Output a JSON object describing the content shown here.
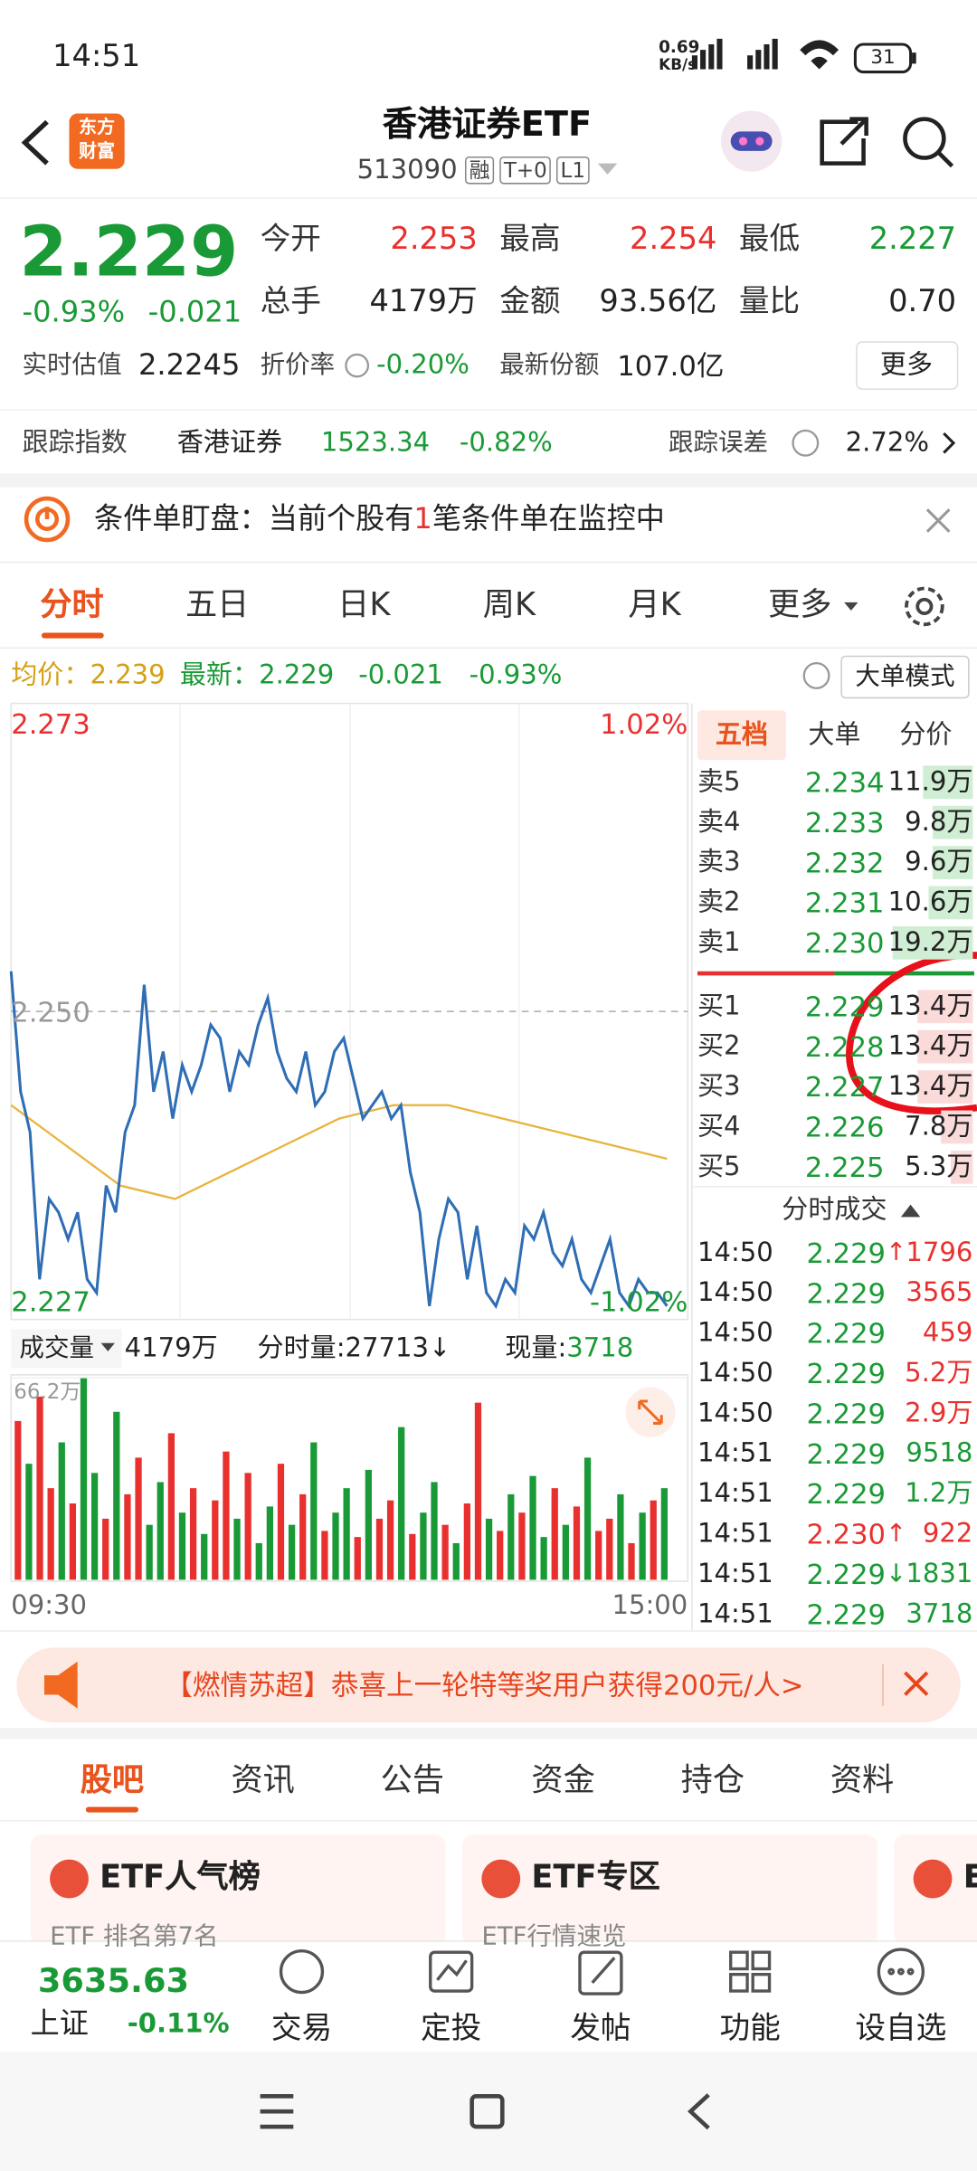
{
  "status_bar": {
    "time": "14:51",
    "speed": "0.69",
    "speed_unit": "KB/s",
    "battery": "31"
  },
  "header": {
    "logo": [
      "东方",
      "财富"
    ],
    "title": "香港证券ETF",
    "code": "513090",
    "tags": [
      "融",
      "T+0",
      "L1"
    ]
  },
  "quote": {
    "price": "2.229",
    "change_pct": "-0.93%",
    "change": "-0.021",
    "fields": [
      {
        "label": "今开",
        "value": "2.253",
        "tone": "up"
      },
      {
        "label": "最高",
        "value": "2.254",
        "tone": "up"
      },
      {
        "label": "最低",
        "value": "2.227",
        "tone": "down"
      },
      {
        "label": "总手",
        "value": "4179万",
        "tone": "flat"
      },
      {
        "label": "金额",
        "value": "93.56亿",
        "tone": "flat"
      },
      {
        "label": "量比",
        "value": "0.70",
        "tone": "flat"
      }
    ],
    "estimate_label": "实时估值",
    "estimate": "2.2245",
    "discount_label": "折价率",
    "discount": "-0.20%",
    "shares_label": "最新份额",
    "shares": "107.0亿",
    "more": "更多"
  },
  "tracking": {
    "label": "跟踪指数",
    "index": "香港证券",
    "index_value": "1523.34",
    "index_change": "-0.82%",
    "error_label": "跟踪误差",
    "error": "2.72%"
  },
  "alert": {
    "before": "条件单盯盘：当前个股有",
    "count": "1",
    "after": "笔条件单在监控中"
  },
  "tabs": [
    "分时",
    "五日",
    "日K",
    "周K",
    "月K",
    "更多"
  ],
  "info": {
    "avg_label": "均价：",
    "avg": "2.239",
    "last_label": "最新：",
    "last": "2.229",
    "change": "-0.021",
    "change_pct": "-0.93%",
    "mode": "大单模式"
  },
  "price_chart": {
    "ylim": [
      2.227,
      2.273
    ],
    "yticks": [
      2.227,
      {
        "value": 2.25,
        "label": "2.250"
      },
      2.273
    ],
    "pct_labels": [
      "1.02%",
      "-1.02%"
    ],
    "price_color": "#2f6db5",
    "average_color": "#e8b43c",
    "price": [
      2.253,
      2.244,
      2.241,
      2.23,
      2.236,
      2.235,
      2.233,
      2.235,
      2.23,
      2.229,
      2.237,
      2.235,
      2.241,
      2.243,
      2.252,
      2.244,
      2.247,
      2.242,
      2.246,
      2.244,
      2.246,
      2.249,
      2.248,
      2.244,
      2.247,
      2.246,
      2.249,
      2.251,
      2.247,
      2.245,
      2.244,
      2.247,
      2.243,
      2.244,
      2.247,
      2.248,
      2.245,
      2.242,
      2.243,
      2.244,
      2.242,
      2.243,
      2.238,
      2.235,
      2.228,
      2.233,
      2.236,
      2.235,
      2.23,
      2.234,
      2.229,
      2.228,
      2.23,
      2.229,
      2.234,
      2.233,
      2.235,
      2.232,
      2.231,
      2.233,
      2.23,
      2.229,
      2.231,
      2.233,
      2.229,
      2.228,
      2.23,
      2.229,
      2.229,
      2.228
    ],
    "average": [
      2.243,
      2.24,
      2.237,
      2.236,
      2.238,
      2.24,
      2.242,
      2.243,
      2.243,
      2.242,
      2.241,
      2.24,
      2.239
    ]
  },
  "volume_bar": {
    "label": "成交量",
    "total": "4179万",
    "minute_label": "分时量:",
    "minute": "27713",
    "arrow": "↓",
    "current_label": "现量:",
    "current": "3718"
  },
  "volume_chart": {
    "ylim": [
      0,
      66.2
    ],
    "yticks": [
      {
        "value": 66.2,
        "label": "66.2万"
      }
    ],
    "x_labels": [
      "09:30",
      "15:00"
    ],
    "values": [
      52,
      38,
      60,
      30,
      45,
      25,
      66,
      35,
      20,
      55,
      28,
      40,
      18,
      32,
      48,
      22,
      30,
      15,
      26,
      42,
      20,
      35,
      12,
      24,
      38,
      18,
      28,
      45,
      16,
      22,
      30,
      14,
      36,
      20,
      26,
      50,
      15,
      22,
      32,
      18,
      12,
      25,
      58,
      20,
      16,
      28,
      22,
      34,
      14,
      30,
      18,
      24,
      40,
      16,
      20,
      28,
      12,
      22,
      26,
      30
    ],
    "rising": [
      true,
      false,
      true,
      true,
      false,
      true,
      false,
      false,
      true,
      false,
      true,
      true,
      false,
      false,
      true,
      false,
      true,
      false,
      true,
      true,
      false,
      true,
      false,
      false,
      true,
      false,
      true,
      false,
      true,
      false,
      false,
      true,
      false,
      true,
      true,
      false,
      true,
      false,
      false,
      true,
      false,
      true,
      true,
      false,
      true,
      false,
      true,
      false,
      false,
      true,
      false,
      true,
      false,
      true,
      true,
      false,
      true,
      false,
      true,
      false
    ]
  },
  "order_book": {
    "tabs": [
      "五档",
      "大单",
      "分价"
    ],
    "asks": {
      "labels": [
        "卖5",
        "卖4",
        "卖3",
        "卖2",
        "卖1"
      ],
      "prices": [
        "2.234",
        "2.233",
        "2.232",
        "2.231",
        "2.230"
      ],
      "volumes": [
        11.9,
        9.8,
        9.6,
        10.6,
        19.2
      ],
      "volume_labels": [
        "11.9万",
        "9.8万",
        "9.6万",
        "10.6万",
        "19.2万"
      ]
    },
    "bids": {
      "labels": [
        "买1",
        "买2",
        "买3",
        "买4",
        "买5"
      ],
      "prices": [
        "2.229",
        "2.228",
        "2.227",
        "2.226",
        "2.225"
      ],
      "volumes": [
        13.4,
        13.4,
        13.4,
        7.8,
        5.3
      ],
      "volume_labels": [
        "13.4万",
        "13.4万",
        "13.4万",
        "7.8万",
        "5.3万"
      ]
    }
  },
  "trades": {
    "title": "分时成交",
    "rows": [
      {
        "time": "14:50",
        "price": "2.229",
        "arrow": "↑",
        "volume": "1796",
        "tone": "up"
      },
      {
        "time": "14:50",
        "price": "2.229",
        "volume": "3565",
        "tone": "up"
      },
      {
        "time": "14:50",
        "price": "2.229",
        "volume": "459",
        "tone": "up"
      },
      {
        "time": "14:50",
        "price": "2.229",
        "volume": "5.2万",
        "tone": "up"
      },
      {
        "time": "14:50",
        "price": "2.229",
        "volume": "2.9万",
        "tone": "up"
      },
      {
        "time": "14:51",
        "price": "2.229",
        "volume": "9518",
        "tone": "down"
      },
      {
        "time": "14:51",
        "price": "2.229",
        "volume": "1.2万",
        "tone": "down"
      },
      {
        "time": "14:51",
        "price": "2.230",
        "arrow": "↑",
        "volume": "922",
        "tone": "up"
      },
      {
        "time": "14:51",
        "price": "2.229",
        "arrow": "↓",
        "volume": "1831",
        "tone": "down"
      },
      {
        "time": "14:51",
        "price": "2.229",
        "volume": "3718",
        "tone": "down"
      }
    ]
  },
  "banner": {
    "text": "【燃情苏超】恭喜上一轮特等奖用户获得200元/人>"
  },
  "sections": [
    "股吧",
    "资讯",
    "公告",
    "资金",
    "持仓",
    "资料"
  ],
  "cards": [
    {
      "title": "ETF人气榜",
      "subtitle": "ETF 排名第7名"
    },
    {
      "title": "ETF专区",
      "subtitle": "ETF行情速览"
    },
    {
      "title": "E"
    }
  ],
  "bottom_nav": {
    "index_value": "3635.63",
    "index_name": "上证",
    "index_change": "-0.11%",
    "items": [
      "交易",
      "定投",
      "发帖",
      "功能",
      "设自选"
    ]
  }
}
